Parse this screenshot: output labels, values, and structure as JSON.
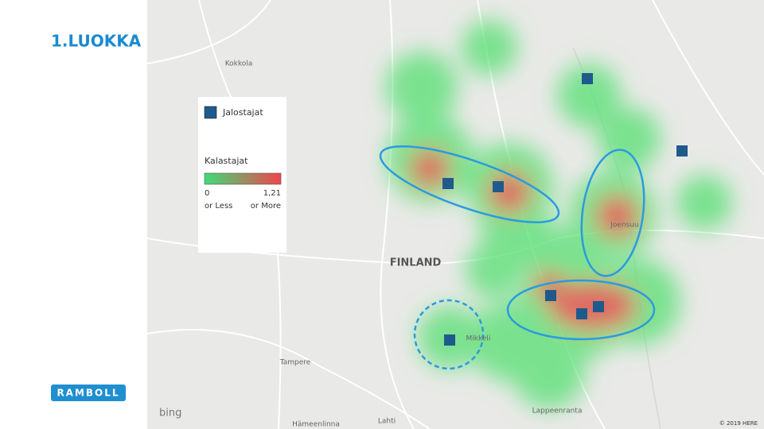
{
  "header": {
    "title": "1.LUOKKA"
  },
  "legend": {
    "marker_label": "Jalostajat",
    "scale_title": "Kalastajat",
    "min_value": "0",
    "min_note": "or Less",
    "max_value": "1,21",
    "max_note": "or More"
  },
  "map": {
    "labels": [
      "Kokkola",
      "FINLAND",
      "Tampere",
      "Mikkeli",
      "Joensuu",
      "Lahti",
      "Lappeenranta",
      "Hämeenlinna"
    ],
    "provider": "bing",
    "copyright": "© 2019 HERE"
  },
  "footer": {
    "logo": "RAMBOLL"
  }
}
